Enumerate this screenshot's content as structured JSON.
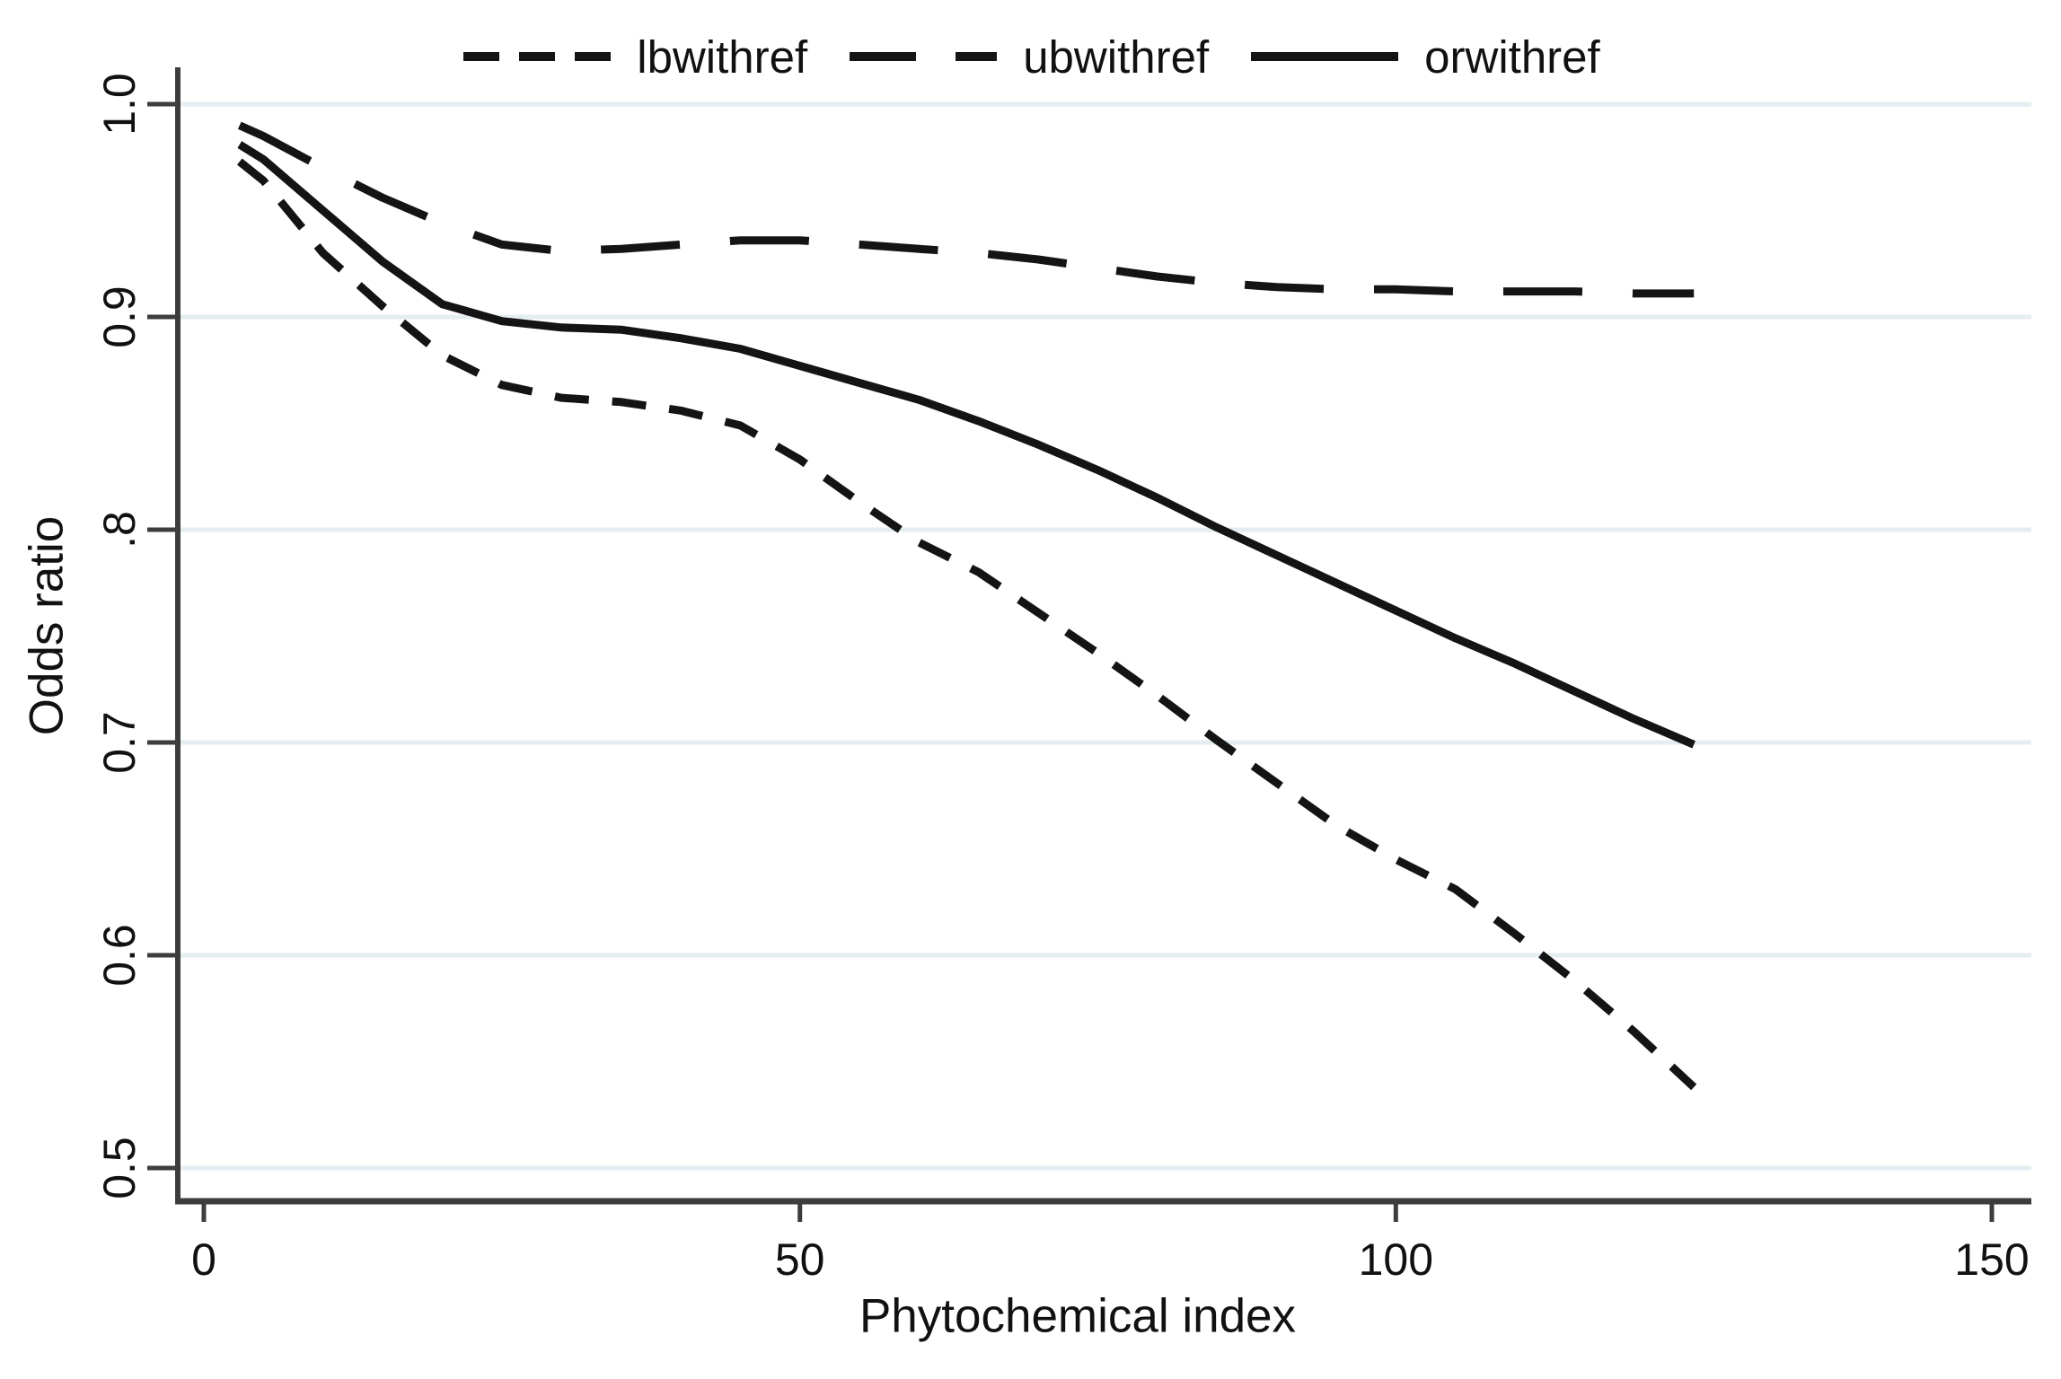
{
  "colors": {
    "line": "#141414",
    "grid": "#e4edf0",
    "axis": "#3d3d3d",
    "background": "#ffffff",
    "text": "#111111"
  },
  "chart_data": {
    "type": "line",
    "title": "",
    "xlabel": "Phytochemical index",
    "ylabel": "Odds ratio",
    "xlim": [
      -2.2,
      153.3
    ],
    "ylim": [
      0.484,
      1.017
    ],
    "grid": "horizontal",
    "legend_position": "top",
    "xticks": {
      "values": [
        0,
        50,
        100,
        150
      ],
      "labels": [
        "0",
        "50",
        "100",
        "150"
      ]
    },
    "yticks": {
      "values": [
        1.0,
        0.9,
        0.8,
        0.7,
        0.6,
        0.5
      ],
      "labels": [
        "1.0",
        "0.9",
        ".8",
        "0.7",
        "0.6",
        "0.5"
      ]
    },
    "x": [
      3,
      5,
      10,
      15,
      20,
      25,
      30,
      35,
      40,
      45,
      50,
      55,
      60,
      65,
      70,
      75,
      80,
      85,
      90,
      95,
      100,
      105,
      110,
      115,
      120,
      125
    ],
    "series": [
      {
        "name": "lbwithref",
        "line_style": "short-dash",
        "values": [
          0.973,
          0.964,
          0.93,
          0.905,
          0.882,
          0.868,
          0.862,
          0.86,
          0.856,
          0.849,
          0.833,
          0.813,
          0.794,
          0.78,
          0.761,
          0.742,
          0.722,
          0.701,
          0.681,
          0.661,
          0.645,
          0.631,
          0.61,
          0.588,
          0.564,
          0.538
        ]
      },
      {
        "name": "ubwithref",
        "line_style": "long-dash",
        "values": [
          0.99,
          0.985,
          0.97,
          0.956,
          0.944,
          0.934,
          0.931,
          0.932,
          0.934,
          0.936,
          0.936,
          0.934,
          0.932,
          0.93,
          0.927,
          0.923,
          0.919,
          0.916,
          0.914,
          0.913,
          0.913,
          0.912,
          0.912,
          0.912,
          0.911,
          0.911
        ]
      },
      {
        "name": "orwithref",
        "line_style": "solid",
        "values": [
          0.981,
          0.974,
          0.95,
          0.926,
          0.906,
          0.898,
          0.895,
          0.894,
          0.89,
          0.885,
          0.877,
          0.869,
          0.861,
          0.851,
          0.84,
          0.828,
          0.815,
          0.801,
          0.788,
          0.775,
          0.762,
          0.749,
          0.737,
          0.724,
          0.711,
          0.699
        ]
      }
    ]
  }
}
